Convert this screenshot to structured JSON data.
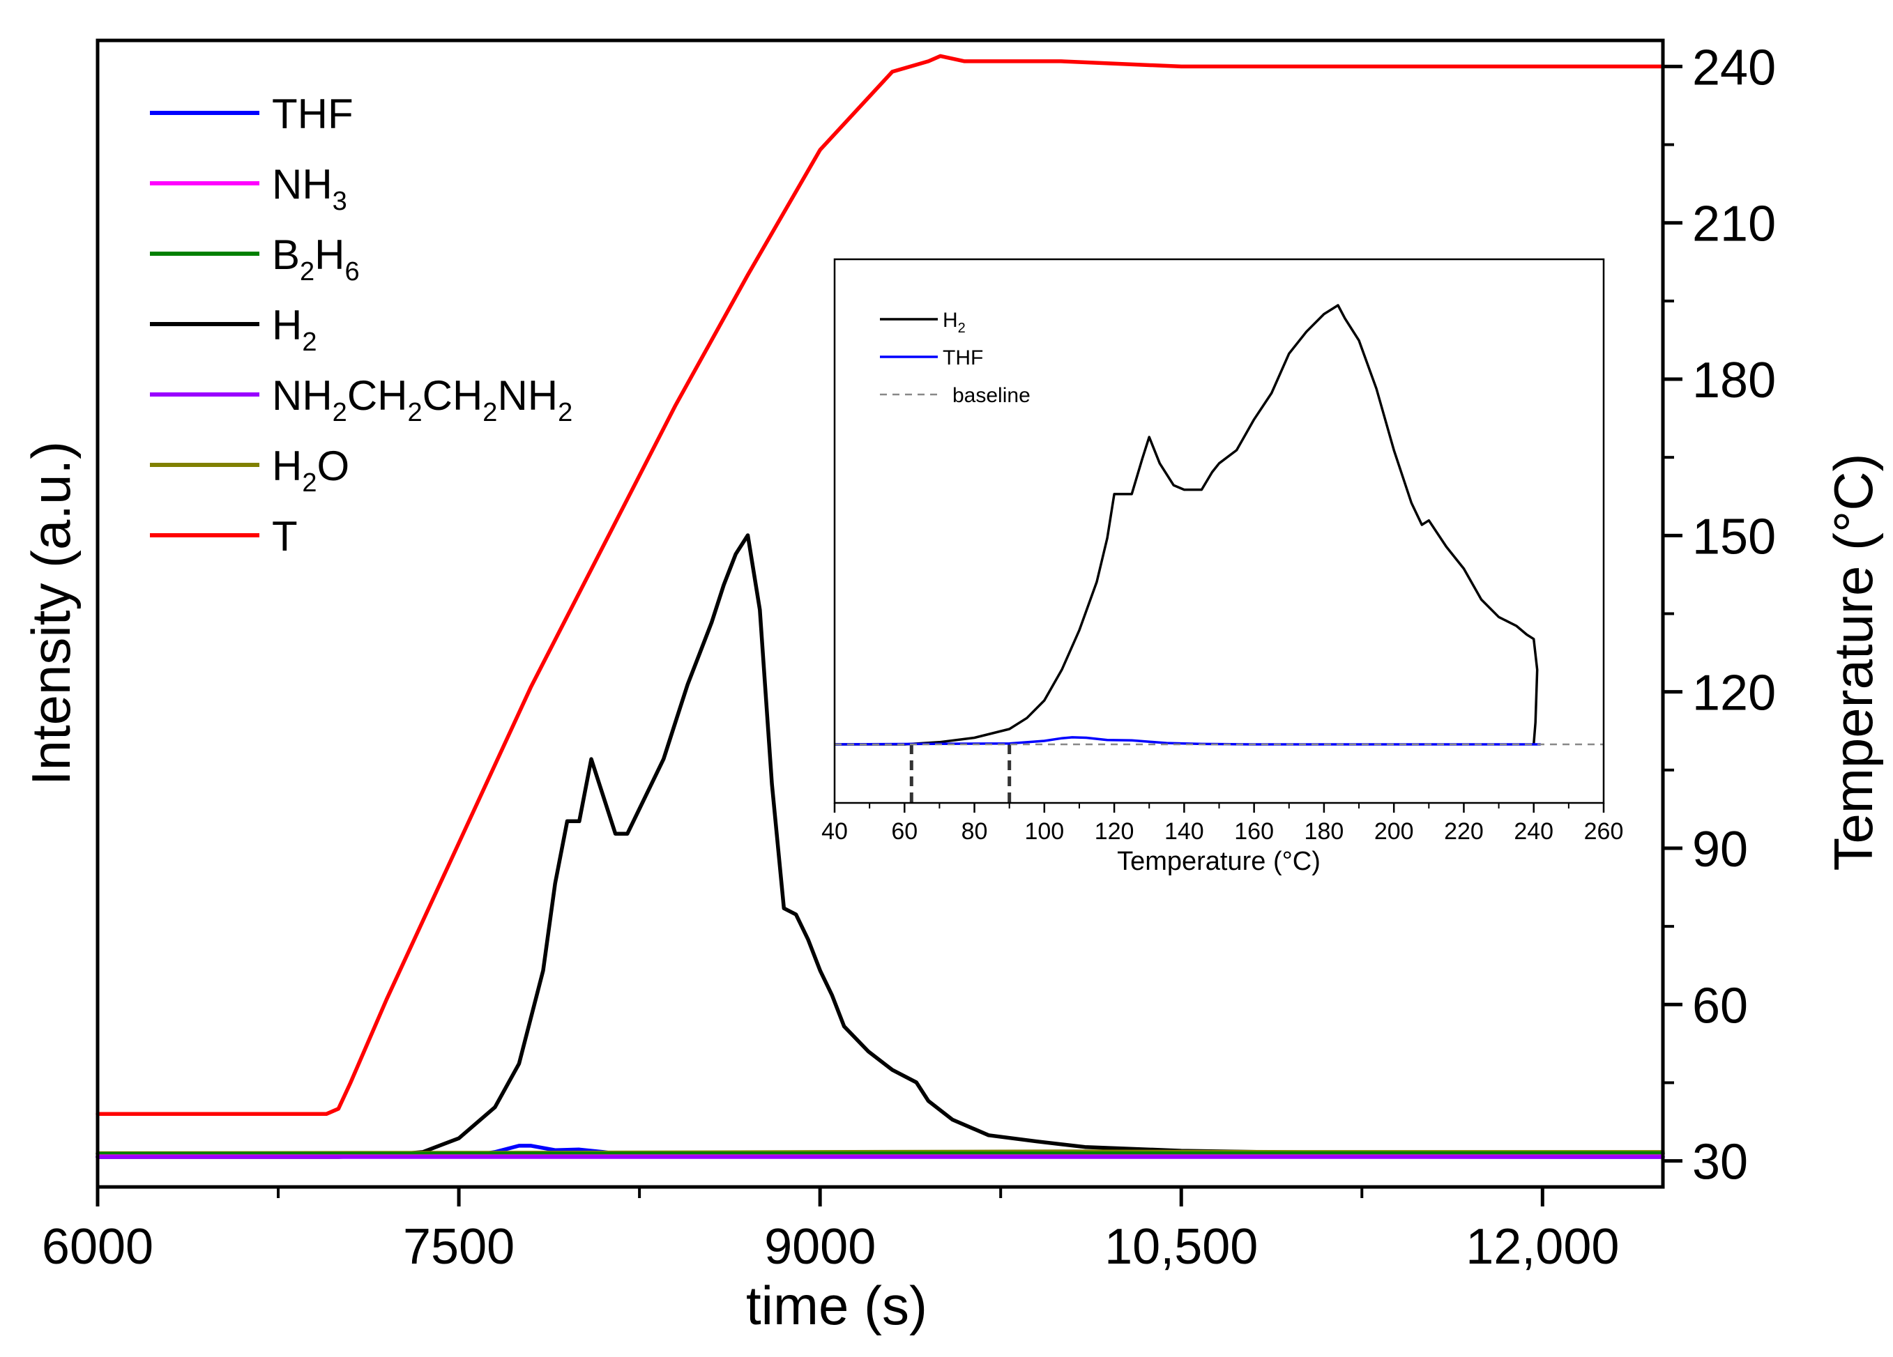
{
  "chart_data": [
    {
      "type": "line",
      "name": "main",
      "xlabel": "time (s)",
      "ylabel_left": "Intensity (a.u.)",
      "ylabel_right": "Temperature (°C)",
      "xlim": [
        6000,
        12500
      ],
      "ylim_right": [
        25,
        245
      ],
      "x_ticks": [
        6000,
        7500,
        9000,
        10500,
        12000
      ],
      "x_tick_labels": [
        "6000",
        "7500",
        "9000",
        "10,500",
        "12,000"
      ],
      "y_right_ticks": [
        30,
        60,
        90,
        120,
        150,
        180,
        210,
        240
      ],
      "y_right_tick_labels": [
        "30",
        "60",
        "90",
        "120",
        "150",
        "180",
        "210",
        "240"
      ],
      "intensity_scale": "arbitrary units (0 = baseline, 1 = H2 peak)",
      "legend": [
        {
          "id": "thf",
          "label": "THF",
          "sub": "",
          "color": "#0000ff"
        },
        {
          "id": "nh3",
          "label": "NH",
          "sub": "3",
          "color": "#ff00ff"
        },
        {
          "id": "b2h6",
          "label": "B",
          "sub": "2",
          "label2": "H",
          "sub2": "6",
          "color": "#008000"
        },
        {
          "id": "h2",
          "label": "H",
          "sub": "2",
          "color": "#000000"
        },
        {
          "id": "en",
          "label": "NH",
          "sub": "2",
          "label2": "CH",
          "sub2": "2",
          "label3": "CH",
          "sub3": "2",
          "label4": "NH",
          "sub4": "2",
          "color": "#9900ff"
        },
        {
          "id": "h2o",
          "label": "H",
          "sub": "2",
          "label2": "O",
          "sub2": "",
          "color": "#808000"
        },
        {
          "id": "t",
          "label": "T",
          "sub": "",
          "color": "#ff0000"
        }
      ],
      "series": [
        {
          "name": "T",
          "axis": "right",
          "color": "#ff0000",
          "x": [
            6000,
            6200,
            6400,
            6600,
            6800,
            6950,
            7000,
            7050,
            7200,
            7500,
            7800,
            8100,
            8400,
            8700,
            9000,
            9300,
            9450,
            9500,
            9600,
            9800,
            10000,
            10500,
            11000,
            11500,
            12000,
            12500
          ],
          "y": [
            39,
            39,
            39,
            39,
            39,
            39,
            40,
            45,
            61,
            91,
            121,
            148,
            175,
            200,
            224,
            239,
            241,
            242,
            241,
            241,
            241,
            240,
            240,
            240,
            240,
            240
          ]
        },
        {
          "name": "H2",
          "axis": "left",
          "color": "#000000",
          "x": [
            6000,
            7000,
            7200,
            7350,
            7500,
            7650,
            7750,
            7850,
            7900,
            7950,
            8000,
            8050,
            8100,
            8150,
            8200,
            8250,
            8300,
            8350,
            8400,
            8450,
            8500,
            8550,
            8600,
            8650,
            8700,
            8750,
            8800,
            8850,
            8900,
            8950,
            9000,
            9050,
            9100,
            9200,
            9300,
            9400,
            9450,
            9550,
            9700,
            9900,
            10100,
            10500,
            11000,
            11500,
            12000,
            12500
          ],
          "y": [
            0,
            0,
            0.003,
            0.008,
            0.03,
            0.08,
            0.15,
            0.3,
            0.44,
            0.54,
            0.54,
            0.64,
            0.58,
            0.52,
            0.52,
            0.56,
            0.6,
            0.64,
            0.7,
            0.76,
            0.81,
            0.86,
            0.92,
            0.97,
            1.0,
            0.88,
            0.6,
            0.4,
            0.39,
            0.35,
            0.3,
            0.26,
            0.21,
            0.17,
            0.14,
            0.12,
            0.09,
            0.06,
            0.035,
            0.025,
            0.016,
            0.01,
            0.007,
            0.006,
            0.005,
            0.005
          ]
        },
        {
          "name": "THF",
          "axis": "left",
          "color": "#0000ff",
          "x": [
            6000,
            7550,
            7650,
            7750,
            7800,
            7900,
            8000,
            8100,
            8200,
            8300,
            12500
          ],
          "y": [
            0,
            0.002,
            0.008,
            0.018,
            0.018,
            0.011,
            0.012,
            0.008,
            0.003,
            0.001,
            0
          ]
        },
        {
          "name": "H2O",
          "axis": "left",
          "color": "#808000",
          "x": [
            6000,
            8000,
            9000,
            10000,
            11000,
            12500
          ],
          "y": [
            0.006,
            0.007,
            0.008,
            0.009,
            0.008,
            0.008
          ]
        },
        {
          "name": "B2H6",
          "axis": "left",
          "color": "#008000",
          "x": [
            6000,
            12500
          ],
          "y": [
            0.005,
            0.006
          ]
        },
        {
          "name": "NH3",
          "axis": "left",
          "color": "#ff00ff",
          "x": [
            6000,
            12500
          ],
          "y": [
            0.001,
            0.001
          ]
        },
        {
          "name": "NH2CH2CH2NH2",
          "axis": "left",
          "color": "#9900ff",
          "x": [
            6000,
            12500
          ],
          "y": [
            0.0,
            0.0
          ]
        }
      ]
    },
    {
      "type": "line",
      "name": "inset",
      "xlabel": "Temperature (°C)",
      "xlim": [
        40,
        260
      ],
      "x_ticks": [
        40,
        60,
        80,
        100,
        120,
        140,
        160,
        180,
        200,
        220,
        240,
        260
      ],
      "x_tick_labels": [
        "40",
        "60",
        "80",
        "100",
        "120",
        "140",
        "160",
        "180",
        "200",
        "220",
        "240",
        "260"
      ],
      "marked_temperatures": [
        62,
        90
      ],
      "legend": [
        {
          "id": "ih2",
          "label": "H",
          "sub": "2",
          "color": "#000000",
          "style": "solid"
        },
        {
          "id": "ithf",
          "label": "THF",
          "sub": "",
          "color": "#0000ff",
          "style": "solid"
        },
        {
          "id": "ibase",
          "label": "baseline",
          "sub": "",
          "color": "#888888",
          "style": "dashed"
        }
      ],
      "series": [
        {
          "name": "H2",
          "color": "#000000",
          "x": [
            40,
            60,
            70,
            80,
            90,
            95,
            100,
            105,
            110,
            115,
            118,
            120,
            122,
            125,
            128,
            130,
            133,
            137,
            140,
            145,
            148,
            150,
            155,
            160,
            165,
            170,
            175,
            180,
            184,
            186,
            190,
            195,
            200,
            205,
            208,
            210,
            215,
            220,
            225,
            230,
            235,
            238,
            240,
            241,
            240.5,
            240
          ],
          "y": [
            0,
            0,
            0.005,
            0.015,
            0.035,
            0.06,
            0.1,
            0.17,
            0.26,
            0.37,
            0.47,
            0.57,
            0.57,
            0.57,
            0.65,
            0.7,
            0.64,
            0.59,
            0.58,
            0.58,
            0.62,
            0.64,
            0.67,
            0.74,
            0.8,
            0.89,
            0.94,
            0.98,
            1.0,
            0.97,
            0.92,
            0.81,
            0.67,
            0.55,
            0.5,
            0.51,
            0.45,
            0.4,
            0.33,
            0.29,
            0.27,
            0.25,
            0.24,
            0.17,
            0.05,
            0.0
          ]
        },
        {
          "name": "THF",
          "color": "#0000ff",
          "x": [
            40,
            90,
            100,
            105,
            108,
            112,
            118,
            125,
            135,
            145,
            160,
            180,
            200,
            220,
            242
          ],
          "y": [
            0,
            0.002,
            0.008,
            0.014,
            0.016,
            0.015,
            0.01,
            0.009,
            0.003,
            0.001,
            0,
            0,
            0,
            0,
            0
          ]
        },
        {
          "name": "baseline",
          "color": "#888888",
          "dashed": true,
          "x": [
            40,
            260
          ],
          "y": [
            0,
            0
          ]
        }
      ]
    }
  ]
}
